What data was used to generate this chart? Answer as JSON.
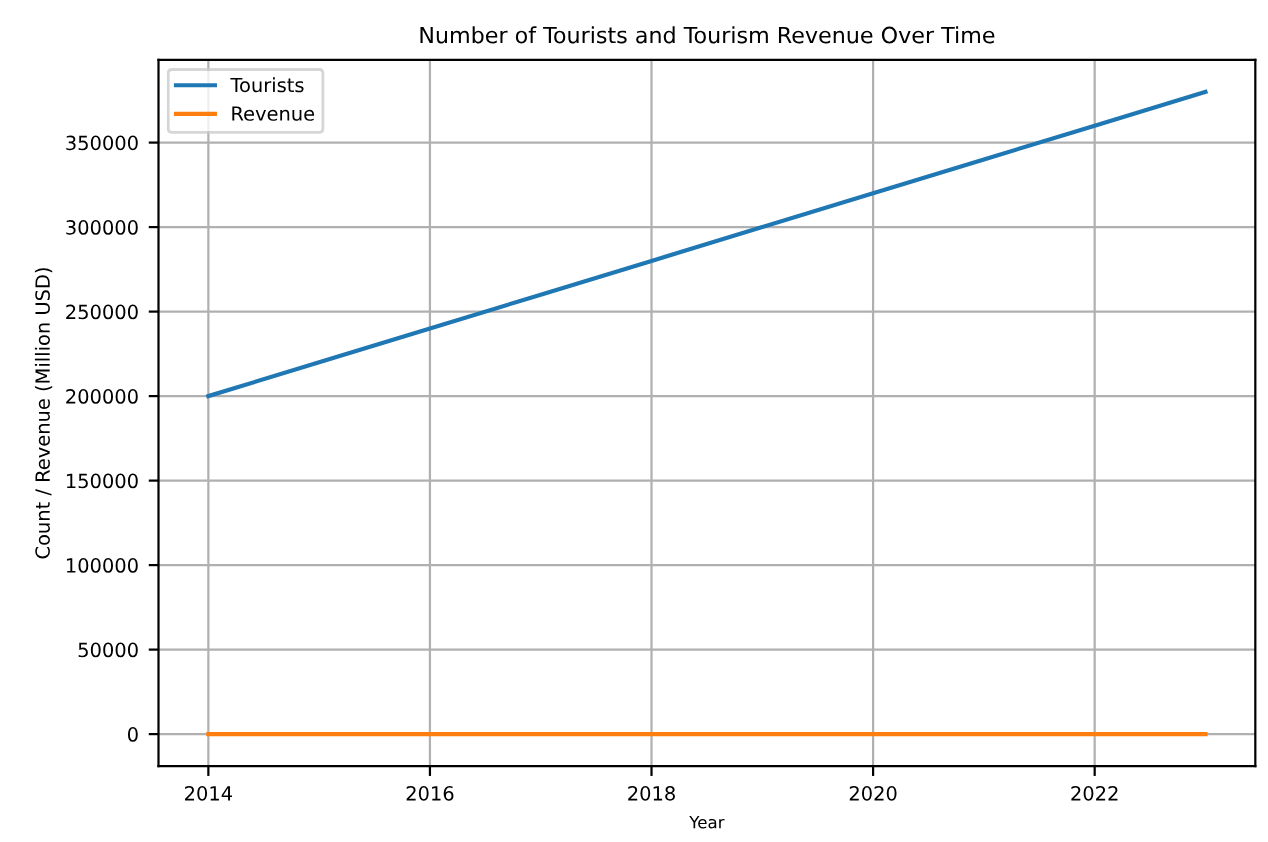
{
  "chart_data": {
    "type": "line",
    "title": "Number of Tourists and Tourism Revenue Over Time",
    "xlabel": "Year",
    "ylabel": "Count / Revenue (Million USD)",
    "x": [
      2014,
      2015,
      2016,
      2017,
      2018,
      2019,
      2020,
      2021,
      2022,
      2023
    ],
    "series": [
      {
        "name": "Tourists",
        "color": "#1f77b4",
        "values": [
          200000,
          220000,
          240000,
          260000,
          280000,
          300000,
          320000,
          340000,
          360000,
          380000
        ]
      },
      {
        "name": "Revenue",
        "color": "#ff7f0e",
        "values": [
          0,
          0,
          0,
          0,
          0,
          0,
          0,
          0,
          0,
          0
        ]
      }
    ],
    "xlim": [
      2013.55,
      2023.45
    ],
    "xticks": [
      2014,
      2016,
      2018,
      2020,
      2022
    ],
    "ylim": [
      -19000,
      399000
    ],
    "yticks": [
      0,
      50000,
      100000,
      150000,
      200000,
      250000,
      300000,
      350000
    ],
    "grid": true,
    "legend": "top left",
    "line_style": "solid",
    "marker": "none"
  }
}
